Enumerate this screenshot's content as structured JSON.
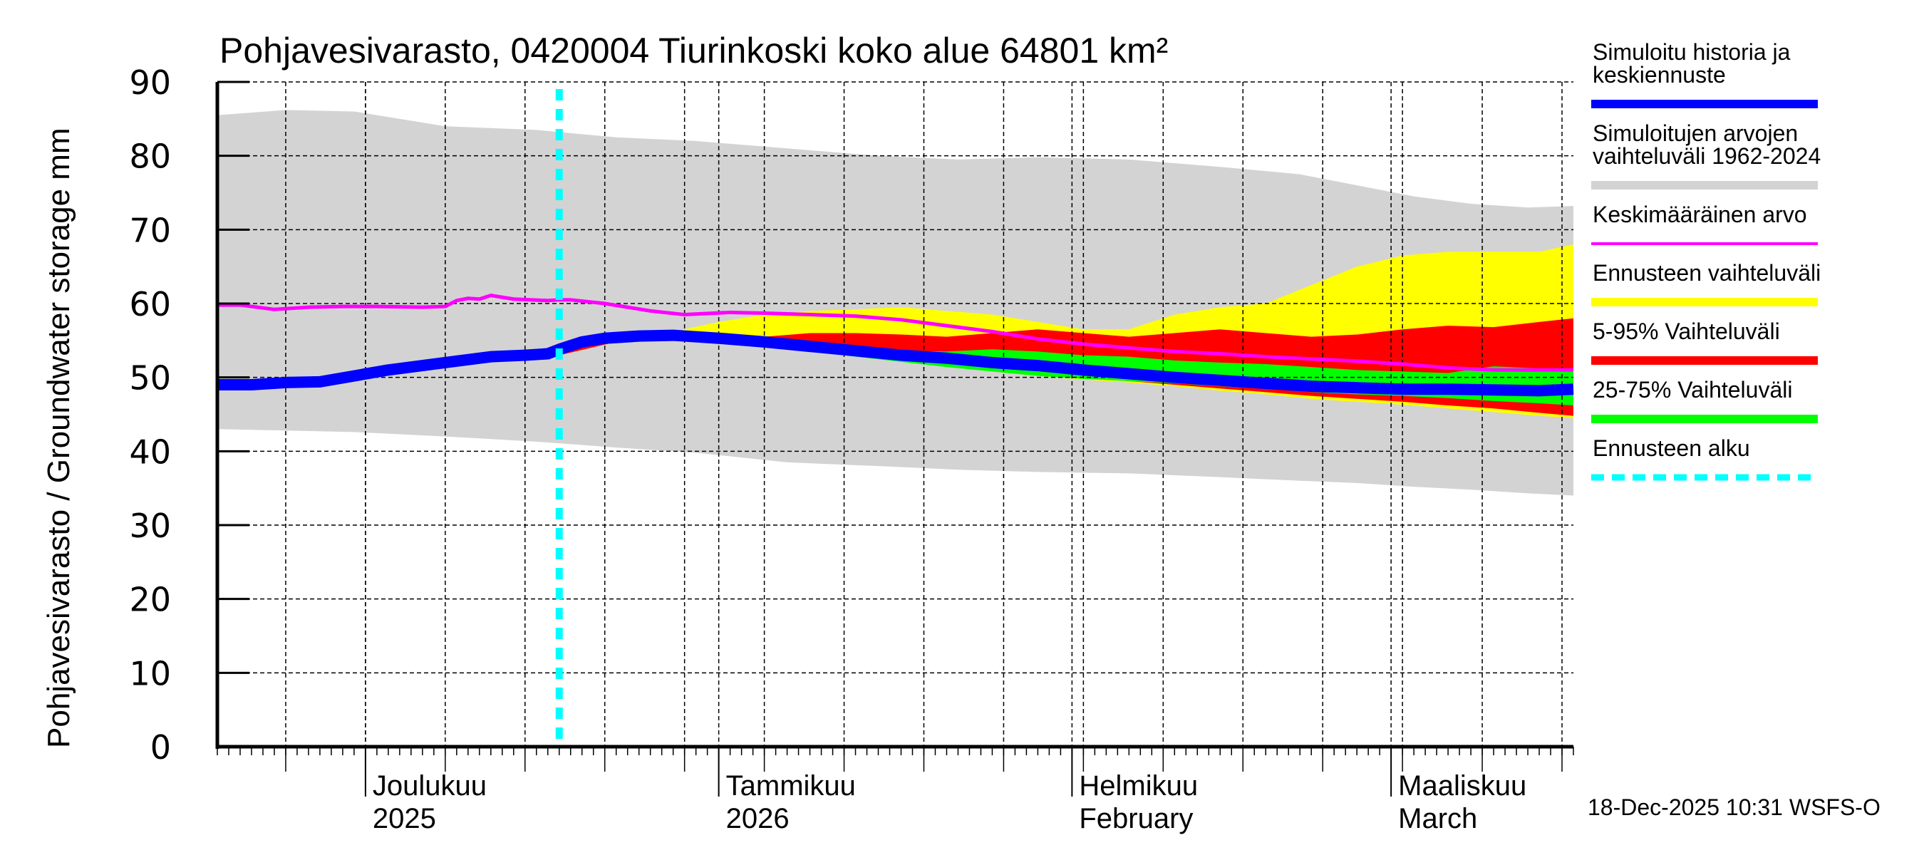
{
  "chart_data": {
    "type": "area",
    "title": "Pohjavesivarasto, 0420004 Tiurinkoski koko alue 64801 km²",
    "ylabel": "Pohjavesivarasto / Groundwater storage   mm",
    "xlabel": "",
    "ylim": [
      0,
      90
    ],
    "yticks": [
      0,
      10,
      20,
      30,
      40,
      50,
      60,
      70,
      80,
      90
    ],
    "x_unit": "days since 2025-11-18",
    "xlim": [
      0,
      119
    ],
    "grid": true,
    "forecast_start_day": 30,
    "month_ticks": [
      {
        "day": 13,
        "line1": "Joulukuu",
        "line2": "2025"
      },
      {
        "day": 44,
        "line1": "Tammikuu",
        "line2": "2026"
      },
      {
        "day": 75,
        "line1": "Helmikuu",
        "line2": "February"
      },
      {
        "day": 103,
        "line1": "Maaliskuu",
        "line2": "March"
      }
    ],
    "legend_position": "right",
    "series": [
      {
        "name": "Simuloitujen arvojen vaihteluväli 1962-2024",
        "kind": "band",
        "color": "#d3d3d3",
        "x": [
          0,
          6,
          12,
          20,
          28,
          35,
          42,
          50,
          58,
          65,
          72,
          80,
          88,
          95,
          100,
          105,
          110,
          115,
          119
        ],
        "upper": [
          85.5,
          86.2,
          86.0,
          84.0,
          83.5,
          82.5,
          82.0,
          81.0,
          80.0,
          79.5,
          79.8,
          79.5,
          78.5,
          77.5,
          76.0,
          74.5,
          73.5,
          73.0,
          73.2
        ],
        "lower": [
          43.0,
          42.8,
          42.6,
          42.0,
          41.3,
          40.5,
          39.8,
          38.5,
          38.0,
          37.5,
          37.2,
          37.0,
          36.5,
          36.0,
          35.7,
          35.2,
          34.8,
          34.3,
          34.0
        ]
      },
      {
        "name": "Ennusteen vaihteluväli",
        "kind": "band",
        "color": "#ffff00",
        "x": [
          30,
          35,
          40,
          44,
          48,
          52,
          56,
          60,
          64,
          68,
          72,
          76,
          80,
          84,
          88,
          92,
          96,
          100,
          104,
          108,
          112,
          116,
          119
        ],
        "upper": [
          53.2,
          55.2,
          56.2,
          57.5,
          58.5,
          59.0,
          59.2,
          59.5,
          59.0,
          58.5,
          57.5,
          56.5,
          56.5,
          58.5,
          59.5,
          60.0,
          62.5,
          65.0,
          66.5,
          67.0,
          67.0,
          67.0,
          68.0
        ],
        "lower": [
          53.0,
          54.8,
          55.3,
          54.8,
          54.3,
          53.6,
          52.9,
          52.2,
          51.5,
          50.8,
          50.2,
          49.7,
          49.3,
          48.8,
          48.2,
          47.7,
          47.1,
          46.7,
          46.3,
          45.8,
          45.3,
          44.8,
          44.5
        ]
      },
      {
        "name": "5-95% Vaihteluväli",
        "kind": "band",
        "color": "#ff0000",
        "x": [
          30,
          35,
          40,
          44,
          48,
          52,
          56,
          60,
          64,
          68,
          72,
          76,
          80,
          84,
          88,
          92,
          96,
          100,
          104,
          108,
          112,
          116,
          119
        ],
        "upper": [
          53.2,
          55.2,
          55.8,
          55.8,
          55.5,
          56.0,
          56.0,
          55.8,
          55.5,
          56.0,
          56.5,
          56.0,
          55.5,
          56.0,
          56.5,
          56.0,
          55.5,
          55.8,
          56.5,
          57.0,
          56.8,
          57.5,
          58.0
        ],
        "lower": [
          53.0,
          54.8,
          55.5,
          55.0,
          54.5,
          53.8,
          53.1,
          52.4,
          51.8,
          51.2,
          50.6,
          50.0,
          49.5,
          49.0,
          48.5,
          48.0,
          47.5,
          47.1,
          46.7,
          46.2,
          45.8,
          45.2,
          44.8
        ]
      },
      {
        "name": "25-75% Vaihteluväli",
        "kind": "band",
        "color": "#00ff00",
        "x": [
          44,
          48,
          52,
          56,
          60,
          64,
          68,
          72,
          76,
          80,
          84,
          88,
          92,
          96,
          100,
          104,
          108,
          112,
          116,
          119
        ],
        "upper": [
          55.0,
          54.8,
          54.4,
          54.0,
          53.6,
          53.5,
          53.8,
          53.5,
          53.0,
          52.8,
          52.3,
          52.0,
          51.8,
          51.4,
          51.0,
          50.8,
          50.6,
          51.5,
          51.2,
          51.0
        ],
        "lower": [
          55.0,
          54.4,
          53.6,
          52.8,
          52.1,
          51.4,
          50.8,
          50.2,
          49.8,
          49.5,
          49.2,
          48.8,
          48.5,
          48.0,
          47.7,
          47.5,
          47.2,
          46.8,
          46.5,
          46.2
        ]
      },
      {
        "name": "Keskimääräinen arvo",
        "kind": "line",
        "color": "#ff00ff",
        "x": [
          0,
          2,
          5,
          8,
          11,
          14,
          18,
          20,
          21,
          22,
          23,
          24,
          26,
          29,
          30,
          31,
          34,
          38,
          41,
          45,
          48,
          52,
          56,
          60,
          64,
          68,
          72,
          76,
          80,
          84,
          88,
          92,
          96,
          100,
          104,
          108,
          112,
          116,
          119
        ],
        "values": [
          59.8,
          59.8,
          59.2,
          59.5,
          59.6,
          59.6,
          59.5,
          59.6,
          60.4,
          60.7,
          60.6,
          61.1,
          60.6,
          60.4,
          60.5,
          60.5,
          60.0,
          59.0,
          58.5,
          58.8,
          58.7,
          58.5,
          58.3,
          57.8,
          57.0,
          56.2,
          55.2,
          54.5,
          54.0,
          53.5,
          53.2,
          52.8,
          52.5,
          52.2,
          51.8,
          51.3,
          51.0,
          51.0,
          51.0
        ]
      },
      {
        "name": "Simuloitu historia ja keskiennuste",
        "kind": "line",
        "color": "#0000ff",
        "x": [
          0,
          3,
          6,
          9,
          12,
          15,
          18,
          21,
          24,
          27,
          29,
          30,
          32,
          34,
          37,
          40,
          44,
          48,
          52,
          56,
          60,
          64,
          68,
          72,
          76,
          80,
          84,
          88,
          92,
          96,
          100,
          104,
          108,
          112,
          116,
          119
        ],
        "values": [
          49.0,
          49.0,
          49.3,
          49.4,
          50.2,
          51.0,
          51.6,
          52.2,
          52.8,
          53.0,
          53.2,
          53.8,
          54.8,
          55.3,
          55.6,
          55.7,
          55.3,
          54.8,
          54.2,
          53.6,
          53.0,
          52.6,
          52.0,
          51.6,
          51.0,
          50.5,
          50.0,
          49.6,
          49.2,
          48.8,
          48.6,
          48.4,
          48.4,
          48.3,
          48.2,
          48.4
        ]
      }
    ]
  },
  "legend": {
    "items": [
      {
        "line1": "Simuloitu historia ja",
        "line2": "keskiennuste",
        "color": "#0000ff",
        "style": "solid"
      },
      {
        "line1": "Simuloitujen arvojen",
        "line2": "vaihteluväli 1962-2024",
        "color": "#d3d3d3",
        "style": "solid"
      },
      {
        "line1": "Keskimääräinen arvo",
        "line2": "",
        "color": "#ff00ff",
        "style": "thin"
      },
      {
        "line1": "Ennusteen vaihteluväli",
        "line2": "",
        "color": "#ffff00",
        "style": "solid"
      },
      {
        "line1": "5-95% Vaihteluväli",
        "line2": "",
        "color": "#ff0000",
        "style": "solid"
      },
      {
        "line1": "25-75% Vaihteluväli",
        "line2": "",
        "color": "#00ff00",
        "style": "solid"
      },
      {
        "line1": "Ennusteen alku",
        "line2": "",
        "color": "#00ffff",
        "style": "dashed"
      }
    ]
  },
  "footer": {
    "timestamp": "18-Dec-2025 10:31 WSFS-O"
  }
}
